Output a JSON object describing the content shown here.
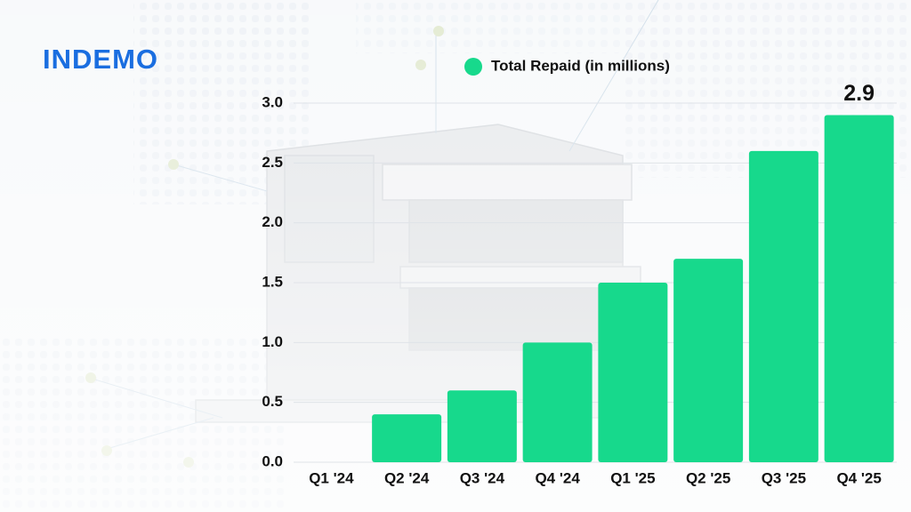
{
  "brand": "INDEMO",
  "chart_data": {
    "type": "bar",
    "series": [
      {
        "name": "Total Repaid (in millions)",
        "color": "#17d98c",
        "values": [
          0,
          0.4,
          0.6,
          1.0,
          1.5,
          1.7,
          2.6,
          2.9
        ]
      }
    ],
    "categories": [
      "Q1 '24",
      "Q2 '24",
      "Q3 '24",
      "Q4 '24",
      "Q1 '25",
      "Q2 '25",
      "Q3 '25",
      "Q4 '25"
    ],
    "ylim": [
      0,
      3
    ],
    "yticks": [
      {
        "value": 0,
        "label": "0.0"
      },
      {
        "value": 0.5,
        "label": "0.5"
      },
      {
        "value": 1,
        "label": "1.0"
      },
      {
        "value": 1.5,
        "label": "1.5"
      },
      {
        "value": 2,
        "label": "2.0"
      },
      {
        "value": 2.5,
        "label": "2.5"
      },
      {
        "value": 3,
        "label": "3.0"
      }
    ],
    "grid": true,
    "data_labels": "last"
  }
}
